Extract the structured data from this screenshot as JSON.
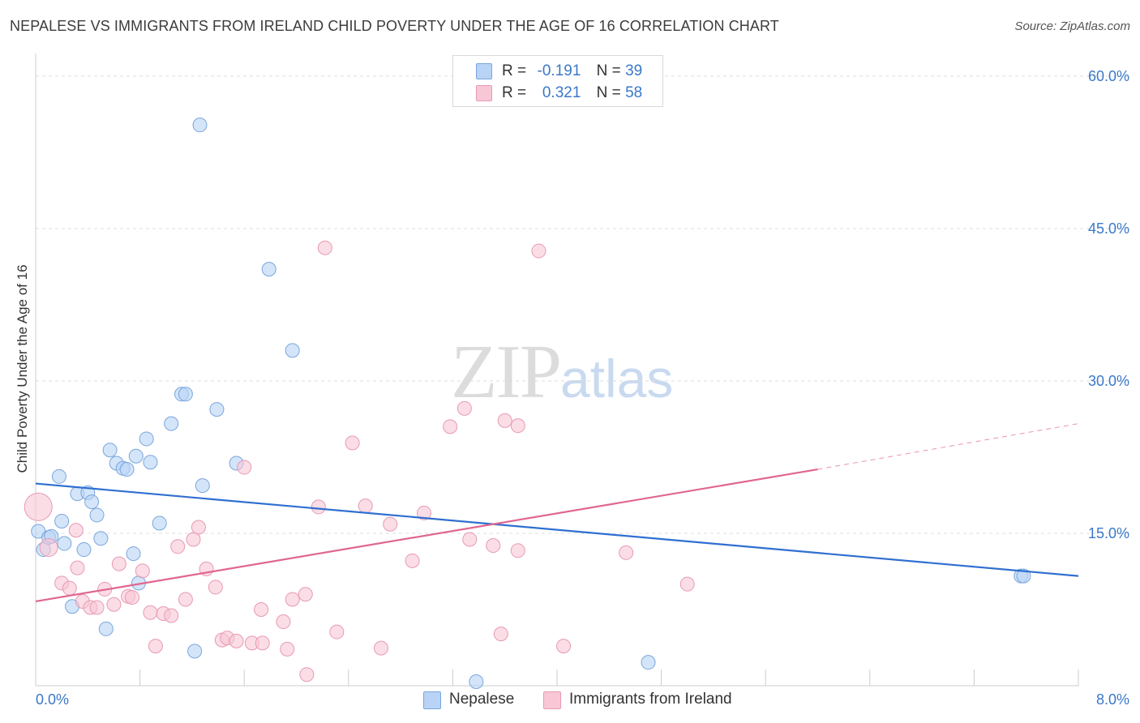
{
  "title": "NEPALESE VS IMMIGRANTS FROM IRELAND CHILD POVERTY UNDER THE AGE OF 16 CORRELATION CHART",
  "source": "Source: ZipAtlas.com",
  "watermark": {
    "zip": "ZIP",
    "atlas": "atlas"
  },
  "legend_top": [
    {
      "r_label": "R =",
      "r_value": "-0.191",
      "n_label": "N =",
      "n_value": "39"
    },
    {
      "r_label": "R =",
      "r_value": "0.321",
      "n_label": "N =",
      "n_value": "58"
    }
  ],
  "legend_bottom": [
    "Nepalese",
    "Immigrants from Ireland"
  ],
  "colors": {
    "nepalese_fill": "#b8d3f5",
    "nepalese_stroke": "#7aa6dd",
    "nepalese_line": "#2f6fd0",
    "ireland_fill": "#f8c7d6",
    "ireland_stroke": "#e79ab4",
    "ireland_line": "#e06690",
    "axis_label": "#3a78c9",
    "grid": "#dddddd"
  },
  "chart_data": {
    "type": "scatter",
    "title": "NEPALESE VS IMMIGRANTS FROM IRELAND CHILD POVERTY UNDER THE AGE OF 16 CORRELATION CHART",
    "xlabel": "",
    "ylabel": "Child Poverty Under the Age of 16",
    "xlim": [
      0,
      8
    ],
    "ylim": [
      0,
      60
    ],
    "x_tick_labels": [
      "0.0%",
      "8.0%"
    ],
    "y_tick_labels": [
      "15.0%",
      "30.0%",
      "45.0%",
      "60.0%"
    ],
    "y_ticks": [
      15,
      30,
      45,
      60
    ],
    "grid": true,
    "legend_position": "top-center",
    "series": [
      {
        "name": "Nepalese",
        "r": -0.191,
        "n": 39,
        "trend": {
          "x": [
            0,
            8
          ],
          "y": [
            19.9,
            10.8
          ]
        },
        "points": [
          [
            0.02,
            15.2
          ],
          [
            0.06,
            13.4
          ],
          [
            0.1,
            14.6
          ],
          [
            0.18,
            20.6
          ],
          [
            0.2,
            16.2
          ],
          [
            0.22,
            14.0
          ],
          [
            0.28,
            7.8
          ],
          [
            0.32,
            18.9
          ],
          [
            0.37,
            13.4
          ],
          [
            0.4,
            19.0
          ],
          [
            0.43,
            18.1
          ],
          [
            0.47,
            16.8
          ],
          [
            0.5,
            14.5
          ],
          [
            0.54,
            5.6
          ],
          [
            0.57,
            23.2
          ],
          [
            0.62,
            21.9
          ],
          [
            0.67,
            21.4
          ],
          [
            0.7,
            21.3
          ],
          [
            0.75,
            13.0
          ],
          [
            0.77,
            22.6
          ],
          [
            0.79,
            10.1
          ],
          [
            0.85,
            24.3
          ],
          [
            0.88,
            22.0
          ],
          [
            0.95,
            16.0
          ],
          [
            1.04,
            25.8
          ],
          [
            1.12,
            28.7
          ],
          [
            1.15,
            28.7
          ],
          [
            1.22,
            3.4
          ],
          [
            1.28,
            19.7
          ],
          [
            1.39,
            27.2
          ],
          [
            1.54,
            21.9
          ],
          [
            1.26,
            55.2
          ],
          [
            1.79,
            41.0
          ],
          [
            1.97,
            33.0
          ],
          [
            3.38,
            0.4
          ],
          [
            4.7,
            2.3
          ],
          [
            7.56,
            10.8
          ],
          [
            7.58,
            10.8
          ],
          [
            0.12,
            14.7
          ]
        ]
      },
      {
        "name": "Immigrants from Ireland",
        "r": 0.321,
        "n": 58,
        "trend": {
          "x": [
            0,
            6.0
          ],
          "y": [
            8.3,
            21.3
          ]
        },
        "trend_dashed": {
          "x": [
            6.0,
            8.0
          ],
          "y": [
            21.3,
            25.8
          ]
        },
        "points": [
          [
            0.02,
            17.6
          ],
          [
            0.1,
            13.6
          ],
          [
            0.31,
            15.3
          ],
          [
            0.32,
            11.6
          ],
          [
            0.2,
            10.1
          ],
          [
            0.26,
            9.6
          ],
          [
            0.36,
            8.3
          ],
          [
            0.42,
            7.7
          ],
          [
            0.47,
            7.7
          ],
          [
            0.53,
            9.5
          ],
          [
            0.6,
            8.0
          ],
          [
            0.64,
            12.0
          ],
          [
            0.71,
            8.8
          ],
          [
            0.74,
            8.7
          ],
          [
            0.82,
            11.3
          ],
          [
            0.88,
            7.2
          ],
          [
            0.92,
            3.9
          ],
          [
            0.98,
            7.1
          ],
          [
            1.04,
            6.9
          ],
          [
            1.09,
            13.7
          ],
          [
            1.15,
            8.5
          ],
          [
            1.21,
            14.4
          ],
          [
            1.25,
            15.6
          ],
          [
            1.31,
            11.5
          ],
          [
            1.38,
            9.7
          ],
          [
            1.43,
            4.5
          ],
          [
            1.47,
            4.7
          ],
          [
            1.54,
            4.4
          ],
          [
            1.6,
            21.5
          ],
          [
            1.66,
            4.2
          ],
          [
            1.74,
            4.2
          ],
          [
            1.73,
            7.5
          ],
          [
            1.9,
            6.3
          ],
          [
            1.93,
            3.6
          ],
          [
            1.97,
            8.5
          ],
          [
            2.07,
            9.0
          ],
          [
            2.08,
            1.1
          ],
          [
            2.17,
            17.6
          ],
          [
            2.22,
            43.1
          ],
          [
            2.31,
            5.3
          ],
          [
            2.43,
            23.9
          ],
          [
            2.53,
            17.7
          ],
          [
            2.65,
            3.7
          ],
          [
            2.72,
            15.9
          ],
          [
            2.89,
            12.3
          ],
          [
            2.98,
            17.0
          ],
          [
            3.18,
            25.5
          ],
          [
            3.29,
            27.3
          ],
          [
            3.33,
            14.4
          ],
          [
            3.51,
            13.8
          ],
          [
            3.57,
            5.1
          ],
          [
            3.6,
            26.1
          ],
          [
            3.7,
            13.3
          ],
          [
            3.7,
            25.6
          ],
          [
            3.86,
            42.8
          ],
          [
            4.05,
            3.9
          ],
          [
            4.53,
            13.1
          ],
          [
            5.0,
            10.0
          ]
        ]
      }
    ]
  }
}
